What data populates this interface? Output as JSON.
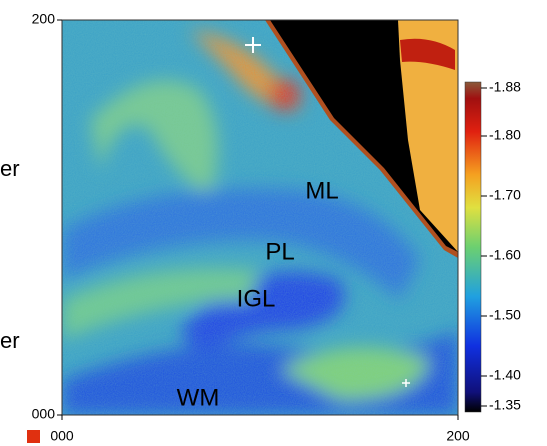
{
  "chart_data": {
    "type": "heatmap",
    "xlim": [
      0,
      200
    ],
    "ylim": [
      0,
      200
    ],
    "xticks": [
      {
        "value": 0,
        "label": "000"
      },
      {
        "value": 200,
        "label": "200"
      }
    ],
    "yticks": [
      {
        "value": 0,
        "label": "000"
      },
      {
        "value": 200,
        "label": "200"
      }
    ],
    "colorbar": {
      "clim": [
        -1.34,
        -1.89
      ],
      "ticks": [
        {
          "value": -1.88,
          "label": "-1.88"
        },
        {
          "value": -1.8,
          "label": "-1.80"
        },
        {
          "value": -1.7,
          "label": "-1.70"
        },
        {
          "value": -1.6,
          "label": "-1.60"
        },
        {
          "value": -1.5,
          "label": "-1.50"
        },
        {
          "value": -1.4,
          "label": "-1.40"
        },
        {
          "value": -1.35,
          "label": "-1.35"
        }
      ]
    },
    "annotations": [
      "ML",
      "PL",
      "IGL",
      "WM"
    ]
  },
  "fragments": [
    "er",
    "er"
  ]
}
